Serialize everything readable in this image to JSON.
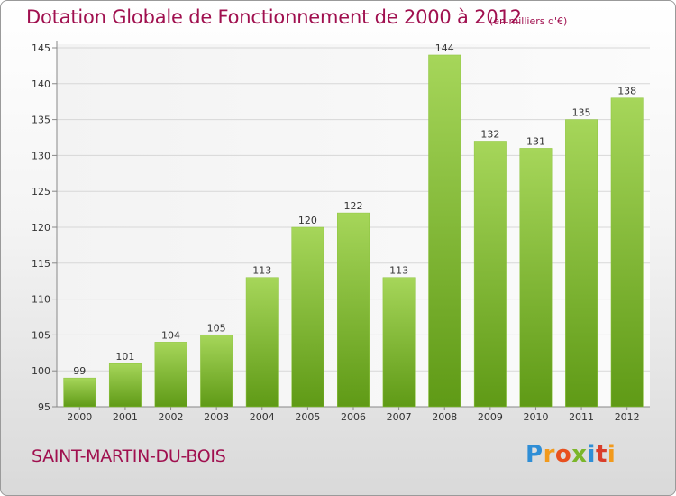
{
  "header": {
    "title": "Dotation Globale de Fonctionnement de 2000 à 2012",
    "unit": "(en milliers d'€)"
  },
  "footer": {
    "commune": "SAINT-MARTIN-DU-BOIS",
    "logo_text": "Proxiti"
  },
  "colors": {
    "title": "#a0104f",
    "bar_top": "#a6d65a",
    "bar_bottom": "#5f9a16",
    "grid": "#d7d7d7",
    "axis": "#888888"
  },
  "chart_data": {
    "type": "bar",
    "title": "Dotation Globale de Fonctionnement de 2000 à 2012",
    "subtitle": "(en milliers d'€)",
    "categories": [
      "2000",
      "2001",
      "2002",
      "2003",
      "2004",
      "2005",
      "2006",
      "2007",
      "2008",
      "2009",
      "2010",
      "2011",
      "2012"
    ],
    "values": [
      99,
      101,
      104,
      105,
      113,
      120,
      122,
      113,
      144,
      132,
      131,
      135,
      138
    ],
    "ylim": [
      95,
      145
    ],
    "yticks": [
      95,
      100,
      105,
      110,
      115,
      120,
      125,
      130,
      135,
      140,
      145
    ],
    "grid": true,
    "data_labels": true
  }
}
